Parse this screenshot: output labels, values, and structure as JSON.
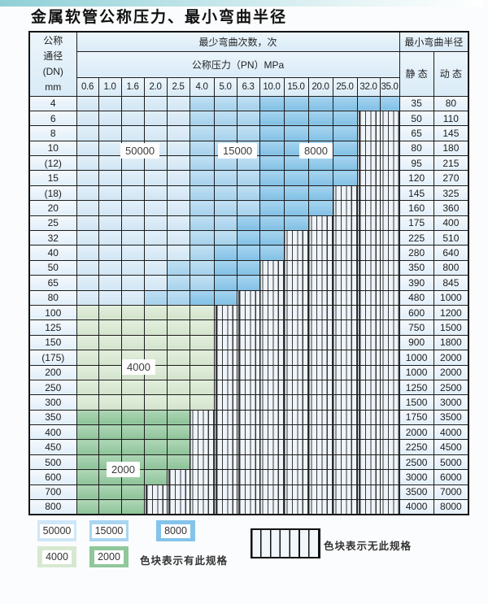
{
  "title": "金属软管公称压力、最小弯曲半径",
  "colors": {
    "c50000": "#d6eaf8",
    "c15000": "#a9d5f0",
    "c8000": "#84c4ea",
    "c4000": "#d7e8d0",
    "c2000": "#90c79b",
    "hatch_bg": "#eef4fa",
    "header_bg": "#d9ebf7",
    "grid_line": "#1c1c1c"
  },
  "header": {
    "dn_lines": [
      "公称",
      "通径",
      "(DN)",
      "mm"
    ],
    "bend_cycles": "最少弯曲次数，次",
    "pressure": "公称压力（PN）MPa",
    "min_radius": "最小弯曲半径",
    "static_label": "静 态",
    "dynamic_label": "动 态",
    "pressures": [
      "0.6",
      "1.0",
      "1.6",
      "2.0",
      "2.5",
      "4.0",
      "5.0",
      "6.3",
      "10.0",
      "15.0",
      "20.0",
      "25.0",
      "32.0",
      "35.0"
    ]
  },
  "zone_meaning": {
    "5": "50000次",
    "1": "15000次",
    "8": "8000次",
    "4": "4000次",
    "2": "2000次",
    "x": "无此规格"
  },
  "rows": [
    {
      "dn": "4",
      "zones": "55555111888888",
      "static": "35",
      "dynamic": "80"
    },
    {
      "dn": "6",
      "zones": "555551118888xx",
      "static": "50",
      "dynamic": "110"
    },
    {
      "dn": "8",
      "zones": "555551118888xx",
      "static": "65",
      "dynamic": "145"
    },
    {
      "dn": "10",
      "zones": "555551118888xx",
      "static": "80",
      "dynamic": "180"
    },
    {
      "dn": "(12)",
      "zones": "555551118888xx",
      "static": "95",
      "dynamic": "215"
    },
    {
      "dn": "15",
      "zones": "555551118888xx",
      "static": "120",
      "dynamic": "270"
    },
    {
      "dn": "(18)",
      "zones": "55555111888xxx",
      "static": "145",
      "dynamic": "325"
    },
    {
      "dn": "20",
      "zones": "55555111888xxx",
      "static": "160",
      "dynamic": "360"
    },
    {
      "dn": "25",
      "zones": "5555511888xxxx",
      "static": "175",
      "dynamic": "400"
    },
    {
      "dn": "32",
      "zones": "555551188xxxxx",
      "static": "225",
      "dynamic": "510"
    },
    {
      "dn": "40",
      "zones": "555551888xxxxx",
      "static": "280",
      "dynamic": "640"
    },
    {
      "dn": "50",
      "zones": "55551188xxxxxx",
      "static": "350",
      "dynamic": "800"
    },
    {
      "dn": "65",
      "zones": "55551188xxxxxx",
      "static": "390",
      "dynamic": "845"
    },
    {
      "dn": "80",
      "zones": "5551188xxxxxxx",
      "static": "480",
      "dynamic": "1000"
    },
    {
      "dn": "100",
      "zones": "444444xxxxxxxx",
      "static": "600",
      "dynamic": "1200"
    },
    {
      "dn": "125",
      "zones": "444444xxxxxxxx",
      "static": "750",
      "dynamic": "1500"
    },
    {
      "dn": "150",
      "zones": "444444xxxxxxxx",
      "static": "900",
      "dynamic": "1800"
    },
    {
      "dn": "(175)",
      "zones": "444444xxxxxxxx",
      "static": "1000",
      "dynamic": "2000"
    },
    {
      "dn": "200",
      "zones": "444444xxxxxxxx",
      "static": "1000",
      "dynamic": "2000"
    },
    {
      "dn": "250",
      "zones": "444444xxxxxxxx",
      "static": "1250",
      "dynamic": "2500"
    },
    {
      "dn": "300",
      "zones": "444444xxxxxxxx",
      "static": "1500",
      "dynamic": "3000"
    },
    {
      "dn": "350",
      "zones": "22222xxxxxxxxx",
      "static": "1750",
      "dynamic": "3500"
    },
    {
      "dn": "400",
      "zones": "22222xxxxxxxxx",
      "static": "2000",
      "dynamic": "4000"
    },
    {
      "dn": "450",
      "zones": "22222xxxxxxxxx",
      "static": "2250",
      "dynamic": "4500"
    },
    {
      "dn": "500",
      "zones": "22222xxxxxxxxx",
      "static": "2500",
      "dynamic": "5000"
    },
    {
      "dn": "600",
      "zones": "2222xxxxxxxxxx",
      "static": "3000",
      "dynamic": "6000"
    },
    {
      "dn": "700",
      "zones": "222xxxxxxxxxxx",
      "static": "3500",
      "dynamic": "7000"
    },
    {
      "dn": "800",
      "zones": "222xxxxxxxxxxx",
      "static": "4000",
      "dynamic": "8000"
    }
  ],
  "overlays": [
    {
      "text": "50000"
    },
    {
      "text": "15000"
    },
    {
      "text": "8000"
    },
    {
      "text": "4000"
    },
    {
      "text": "2000"
    }
  ],
  "legend": {
    "items": [
      {
        "label": "50000",
        "color": "#cfe7f8"
      },
      {
        "label": "15000",
        "color": "#a9d5f0"
      },
      {
        "label": "8000",
        "color": "#84c4ea"
      },
      {
        "label": "4000",
        "color": "#d7e8d0"
      },
      {
        "label": "2000",
        "color": "#90c79b"
      }
    ],
    "has_note": "色块表示有此规格",
    "none_note": "色块表示无此规格"
  }
}
